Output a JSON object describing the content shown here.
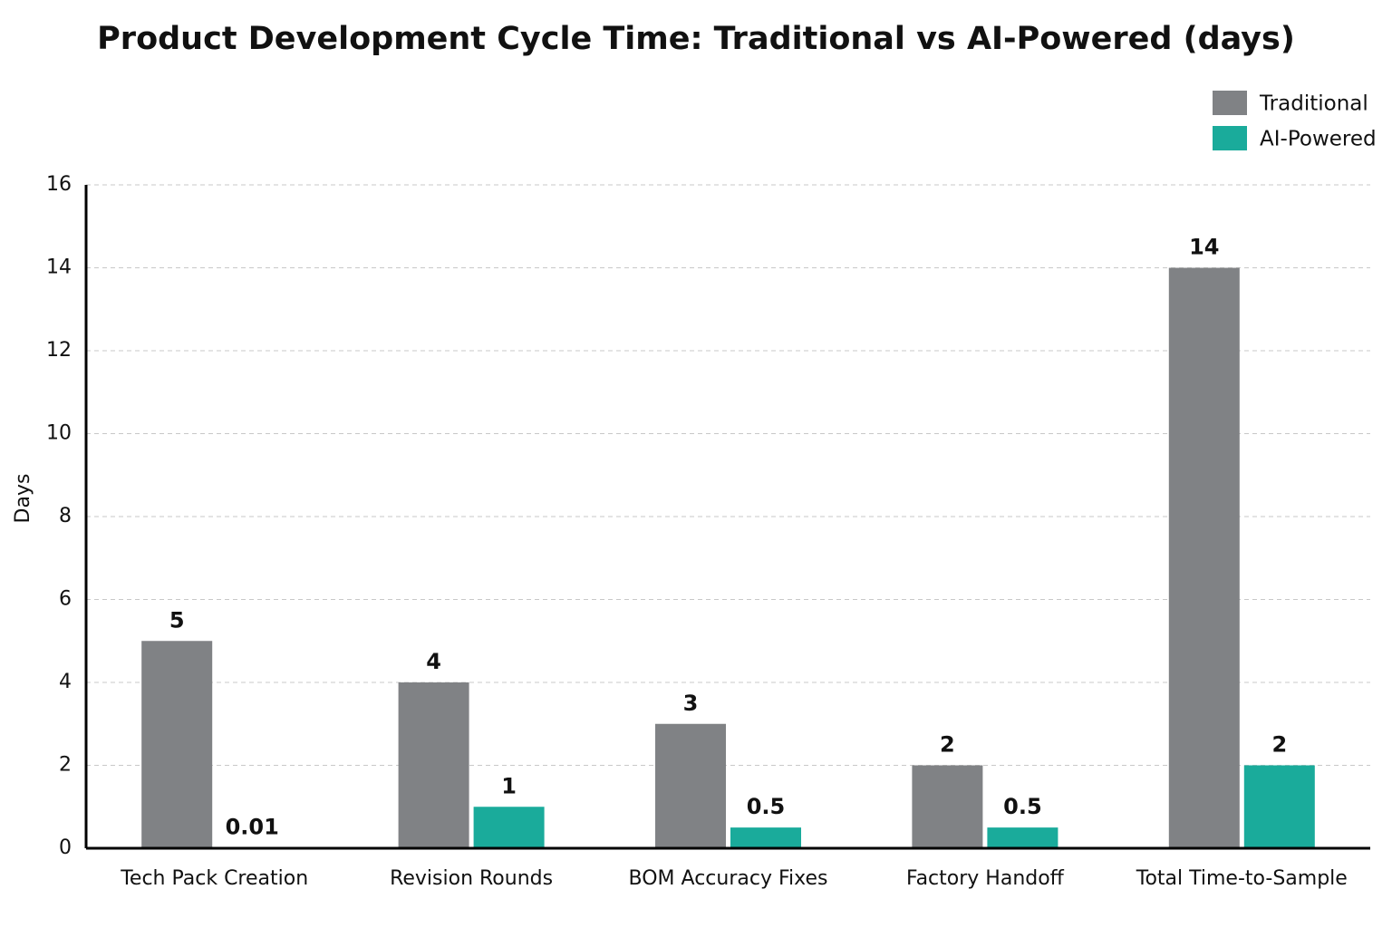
{
  "chart_data": {
    "type": "bar",
    "title": "Product Development Cycle Time: Traditional vs AI-Powered (days)",
    "y_label": "Days",
    "categories": [
      "Tech Pack Creation",
      "Revision Rounds",
      "BOM Accuracy Fixes",
      "Factory Handoff",
      "Total Time-to-Sample"
    ],
    "series": [
      {
        "name": "Traditional",
        "color": "#808285",
        "values": [
          5,
          4,
          3,
          2,
          14
        ]
      },
      {
        "name": "AI-Powered",
        "color": "#1aab9b",
        "values": [
          0.01,
          1,
          0.5,
          0.5,
          2
        ]
      }
    ],
    "ylim": [
      0,
      16
    ],
    "yticks": [
      0,
      2,
      4,
      6,
      8,
      10,
      12,
      14,
      16
    ],
    "grid": true,
    "legend": "upper right"
  }
}
